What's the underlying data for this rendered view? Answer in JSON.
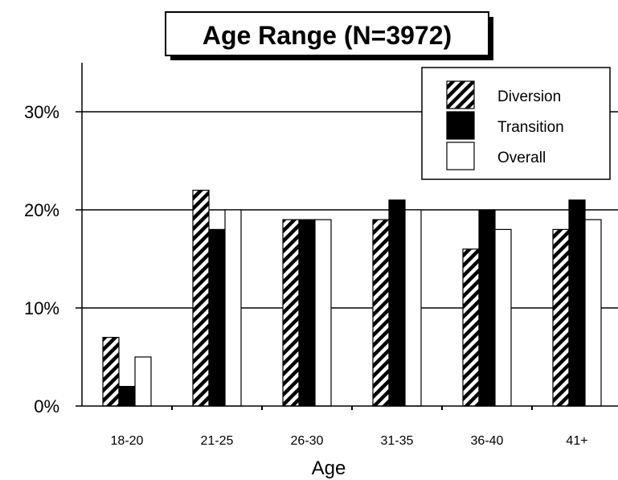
{
  "chart_data": {
    "type": "bar",
    "title": "Age Range (N=3972)",
    "xlabel": "Age",
    "ylabel": "",
    "categories": [
      "18-20",
      "21-25",
      "26-30",
      "31-35",
      "36-40",
      "41+"
    ],
    "series": [
      {
        "name": "Diversion",
        "values": [
          7,
          22,
          19,
          19,
          16,
          18
        ],
        "pattern": "diagonal-hatch"
      },
      {
        "name": "Transition",
        "values": [
          2,
          18,
          19,
          21,
          20,
          21
        ],
        "pattern": "solid"
      },
      {
        "name": "Overall",
        "values": [
          5,
          20,
          19,
          20,
          18,
          19
        ],
        "pattern": "hollow"
      }
    ],
    "ylim": [
      0,
      35
    ],
    "yticks": [
      0,
      10,
      20,
      30
    ],
    "ytick_labels": [
      "0%",
      "10%",
      "20%",
      "30%"
    ],
    "grid": true,
    "legend_position": "top-right"
  },
  "colors": {
    "ink": "#000000",
    "background": "#ffffff"
  }
}
